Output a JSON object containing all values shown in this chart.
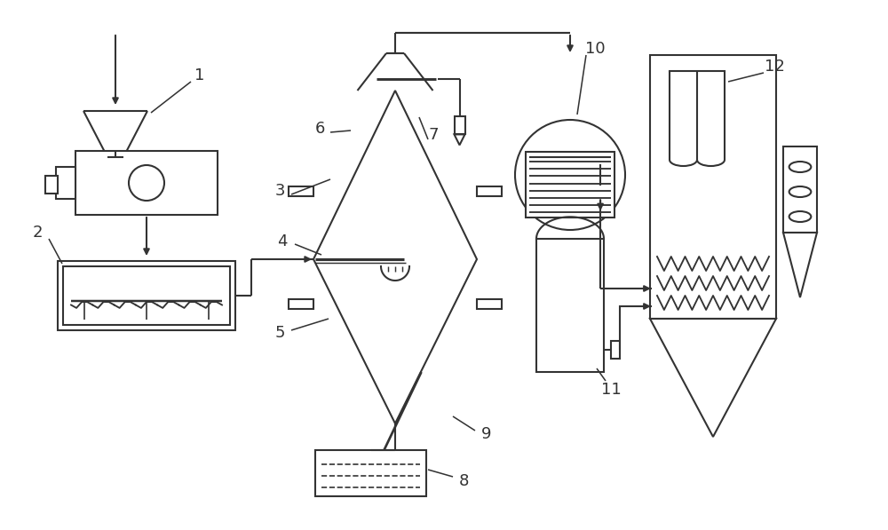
{
  "bg": "#ffffff",
  "lc": "#333333",
  "lw": 1.5,
  "fig_w": 10.0,
  "fig_h": 5.97,
  "dpi": 100
}
